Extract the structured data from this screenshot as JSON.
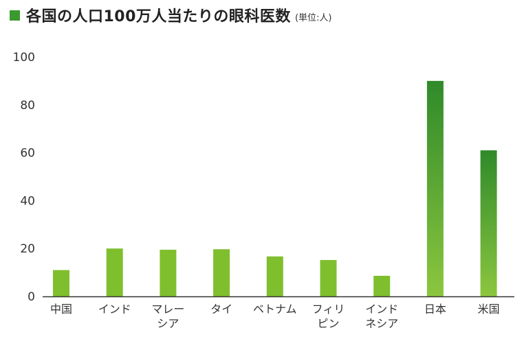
{
  "title": {
    "text": "各国の人口100万人当たりの眼科医数",
    "unit": "(単位:人)"
  },
  "colors": {
    "title_square": "#3a9a2f",
    "bar_top": "#2f8a2a",
    "bar_bottom": "#8cc63f",
    "bar_light": "#7fbf2e",
    "axis": "#333333"
  },
  "chart_data": {
    "type": "bar",
    "title": "各国の人口100万人当たりの眼科医数",
    "subtitle": "(単位:人)",
    "categories": [
      [
        "中国"
      ],
      [
        "インド"
      ],
      [
        "マレー",
        "シア"
      ],
      [
        "タイ"
      ],
      [
        "ベトナム"
      ],
      [
        "フィリ",
        "ピン"
      ],
      [
        "インド",
        "ネシア"
      ],
      [
        "日本"
      ],
      [
        "米国"
      ]
    ],
    "values": [
      11,
      20,
      19.5,
      19.7,
      16.7,
      15.2,
      8.6,
      90,
      61
    ],
    "ylim": [
      0,
      100
    ],
    "yticks": [
      "0",
      "20",
      "40",
      "60",
      "80",
      "100"
    ],
    "ytick_values": [
      0,
      20,
      40,
      60,
      80,
      100
    ],
    "grid": false,
    "legend": "none"
  }
}
